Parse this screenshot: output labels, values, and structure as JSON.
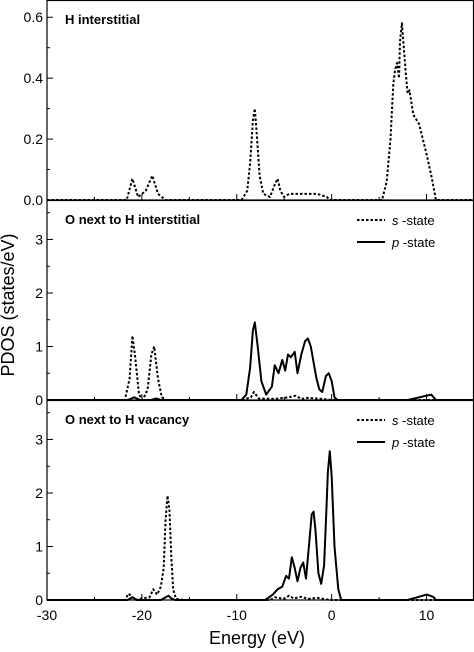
{
  "ylabel": "PDOS (states/eV)",
  "xlabel": "Energy (eV)",
  "x_ticks": [
    -30,
    -20,
    -10,
    0,
    10
  ],
  "chart_data": [
    {
      "type": "line",
      "title": "H interstitial",
      "xlim": [
        -30,
        15
      ],
      "ylim": [
        0,
        0.65
      ],
      "y_ticks": [
        "0.0",
        "0.2",
        "0.4",
        "0.6"
      ],
      "legend": null,
      "series": [
        {
          "style": "dotted",
          "x": [
            -30,
            -21.6,
            -21,
            -20.4,
            -19.6,
            -18.9,
            -18.3,
            -17.5,
            -9.5,
            -8.9,
            -8.6,
            -8.3,
            -8.1,
            -7.9,
            -7.6,
            -7.2,
            -6.5,
            -6,
            -5.7,
            -5.4,
            -5,
            -4.5,
            -3.5,
            -2.5,
            -1.5,
            -0.5,
            -0.2,
            0,
            5.3,
            5.8,
            6.2,
            6.5,
            6.7,
            6.9,
            7.1,
            7.2,
            7.4,
            7.6,
            7.8,
            8.0,
            8.2,
            8.6,
            9.2,
            10.0,
            10.5,
            11,
            15
          ],
          "y": [
            0,
            0,
            0.07,
            0.01,
            0.03,
            0.08,
            0.02,
            0,
            0,
            0.03,
            0.12,
            0.26,
            0.3,
            0.22,
            0.08,
            0.02,
            0.01,
            0.05,
            0.07,
            0.03,
            0.01,
            0.02,
            0.02,
            0.02,
            0.02,
            0.01,
            0,
            0,
            0,
            0.06,
            0.2,
            0.38,
            0.43,
            0.45,
            0.4,
            0.52,
            0.58,
            0.5,
            0.42,
            0.35,
            0.36,
            0.28,
            0.25,
            0.15,
            0.08,
            0,
            0
          ]
        }
      ]
    },
    {
      "type": "line",
      "title": "O next to H interstitial",
      "xlim": [
        -30,
        15
      ],
      "ylim": [
        0,
        3.7
      ],
      "y_ticks": [
        "0",
        "1",
        "2",
        "3"
      ],
      "legend": [
        "s -state",
        "p -state"
      ],
      "series": [
        {
          "name": "s -state",
          "style": "dotted",
          "x": [
            -30,
            -21.8,
            -21.3,
            -21,
            -20.7,
            -20.3,
            -19.9,
            -19.4,
            -19,
            -18.7,
            -18.3,
            -17.9,
            -17.4,
            -9.5,
            -8.5,
            -8.2,
            -7.7,
            -6,
            -4.5,
            -3.8,
            -3.2,
            -2.5,
            -1,
            -0.5,
            0,
            15
          ],
          "y": [
            0,
            0,
            0.4,
            1.2,
            0.8,
            0.1,
            0,
            0.2,
            0.85,
            1.0,
            0.4,
            0.05,
            0,
            0,
            0.05,
            0.15,
            0.03,
            0.02,
            0.05,
            0.08,
            0.02,
            0.04,
            0.02,
            0.01,
            0,
            0
          ]
        },
        {
          "name": "p -state",
          "style": "solid",
          "x": [
            -30,
            -21.5,
            -20.8,
            -20.2,
            -19,
            -18.5,
            -18,
            -9.5,
            -9.0,
            -8.6,
            -8.3,
            -8.1,
            -7.8,
            -7.4,
            -6.9,
            -6.3,
            -6.0,
            -5.6,
            -5.2,
            -4.9,
            -4.6,
            -4.3,
            -3.9,
            -3.6,
            -3.2,
            -2.8,
            -2.5,
            -2.2,
            -1.9,
            -1.6,
            -1.3,
            -1.0,
            -0.6,
            -0.3,
            0,
            0.3,
            0.6,
            1,
            8,
            9,
            10,
            10.5,
            11,
            15
          ],
          "y": [
            0,
            0,
            0.05,
            0,
            0,
            0.03,
            0,
            0,
            0.1,
            0.6,
            1.3,
            1.45,
            1.0,
            0.35,
            0.1,
            0.25,
            0.65,
            0.5,
            0.75,
            0.55,
            0.85,
            0.8,
            0.9,
            0.5,
            0.85,
            1.1,
            1.15,
            1.0,
            0.7,
            0.4,
            0.2,
            0.15,
            0.45,
            0.5,
            0.35,
            0.05,
            0,
            0,
            0,
            0.04,
            0.08,
            0.1,
            0,
            0
          ]
        }
      ]
    },
    {
      "type": "line",
      "title": "O next to H vacancy",
      "xlim": [
        -30,
        15
      ],
      "ylim": [
        0,
        3.7
      ],
      "y_ticks": [
        "0",
        "1",
        "2",
        "3"
      ],
      "legend": [
        "s -state",
        "p -state"
      ],
      "series": [
        {
          "name": "s -state",
          "style": "dotted",
          "x": [
            -30,
            -21.8,
            -21.4,
            -21,
            -20.6,
            -20,
            -19.2,
            -18.8,
            -18.4,
            -18,
            -17.7,
            -17.5,
            -17.3,
            -17.1,
            -16.9,
            -16.7,
            -16.4,
            -15.5,
            -6.5,
            -6,
            -5,
            -4.5,
            -4,
            -3.2,
            -2.5,
            -1.5,
            -0.5,
            0,
            15
          ],
          "y": [
            0,
            0,
            0.12,
            0.05,
            0,
            0.03,
            0.05,
            0.2,
            0.1,
            0.25,
            0.6,
            1.5,
            1.95,
            1.7,
            0.8,
            0.2,
            0.02,
            0,
            0,
            0.05,
            0.02,
            0.08,
            0.03,
            0.06,
            0.02,
            0.04,
            0.01,
            0,
            0
          ]
        },
        {
          "name": "p -state",
          "style": "solid",
          "x": [
            -30,
            -21.5,
            -21,
            -20.5,
            -18,
            -17.5,
            -17.2,
            -16.9,
            -16.5,
            -7,
            -6.2,
            -5.7,
            -5.2,
            -4.8,
            -4.5,
            -4.2,
            -3.9,
            -3.6,
            -3.3,
            -3.0,
            -2.7,
            -2.4,
            -2.1,
            -1.9,
            -1.7,
            -1.4,
            -1.1,
            -0.8,
            -0.6,
            -0.4,
            -0.2,
            0,
            0.3,
            0.7,
            1,
            8,
            9,
            10,
            10.7,
            11,
            15
          ],
          "y": [
            0,
            0,
            0.05,
            0,
            0,
            0.05,
            0.08,
            0.03,
            0,
            0,
            0.1,
            0.2,
            0.25,
            0.45,
            0.4,
            0.8,
            0.6,
            0.35,
            0.6,
            0.7,
            0.4,
            1.0,
            1.6,
            1.65,
            1.3,
            0.5,
            0.3,
            0.65,
            1.5,
            2.4,
            2.78,
            2.3,
            1.0,
            0.2,
            0,
            0,
            0.05,
            0.1,
            0.06,
            0,
            0
          ]
        }
      ]
    }
  ]
}
